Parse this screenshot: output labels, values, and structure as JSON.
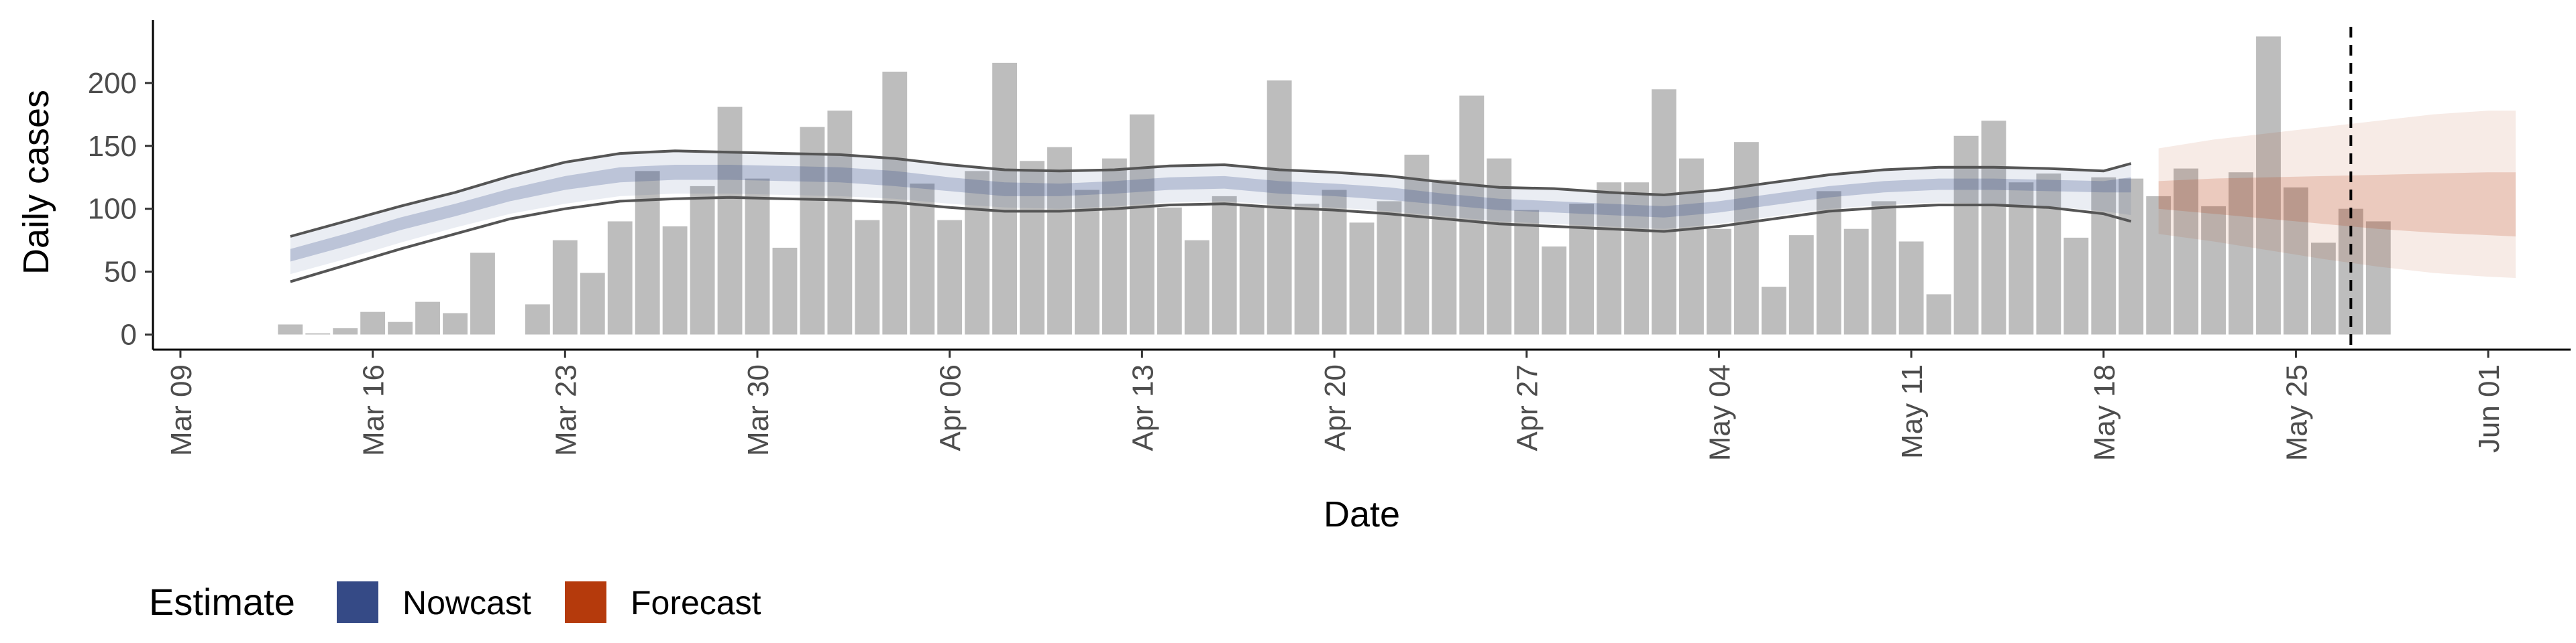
{
  "chart_data": {
    "type": "bar",
    "xlabel": "Date",
    "ylabel": "Daily cases",
    "xlim": [
      "2020-03-08",
      "2020-06-04"
    ],
    "ylim": [
      -12,
      250
    ],
    "y_ticks": [
      0,
      50,
      100,
      150,
      200
    ],
    "x_ticks": [
      {
        "date": "2020-03-09",
        "label": "Mar 09"
      },
      {
        "date": "2020-03-16",
        "label": "Mar 16"
      },
      {
        "date": "2020-03-23",
        "label": "Mar 23"
      },
      {
        "date": "2020-03-30",
        "label": "Mar 30"
      },
      {
        "date": "2020-04-06",
        "label": "Apr 06"
      },
      {
        "date": "2020-04-13",
        "label": "Apr 13"
      },
      {
        "date": "2020-04-20",
        "label": "Apr 20"
      },
      {
        "date": "2020-04-27",
        "label": "Apr 27"
      },
      {
        "date": "2020-05-04",
        "label": "May 04"
      },
      {
        "date": "2020-05-11",
        "label": "May 11"
      },
      {
        "date": "2020-05-18",
        "label": "May 18"
      },
      {
        "date": "2020-05-25",
        "label": "May 25"
      },
      {
        "date": "2020-06-01",
        "label": "Jun 01"
      }
    ],
    "grid": false,
    "legend": {
      "title": "Estimate",
      "position": "bottom-left",
      "entries": [
        {
          "label": "Nowcast",
          "color": "#354A86"
        },
        {
          "label": "Forecast",
          "color": "#B53A0C"
        }
      ]
    },
    "colors": {
      "bars": "#BDBDBD",
      "nowcast": "#354A86",
      "forecast": "#B53A0C",
      "bound_lines": "#555555",
      "vline": "#000000"
    },
    "observed_start_date": "2020-03-13",
    "observed_cases": [
      8,
      1,
      5,
      18,
      10,
      26,
      17,
      65,
      0,
      24,
      75,
      49,
      90,
      130,
      86,
      118,
      181,
      124,
      69,
      165,
      178,
      91,
      209,
      120,
      91,
      130,
      216,
      138,
      149,
      115,
      140,
      175,
      101,
      75,
      110,
      102,
      202,
      104,
      115,
      89,
      106,
      143,
      123,
      190,
      140,
      99,
      70,
      104,
      121,
      121,
      195,
      140,
      84,
      153,
      38,
      79,
      114,
      84,
      106,
      74,
      32,
      158,
      170,
      121,
      128,
      77,
      125,
      124,
      110,
      132,
      102,
      129,
      237,
      117,
      73,
      100,
      90
    ],
    "forecast_horizon_date": "2020-05-27",
    "nowcast": {
      "dates": [
        "2020-03-13",
        "2020-03-15",
        "2020-03-17",
        "2020-03-19",
        "2020-03-21",
        "2020-03-23",
        "2020-03-25",
        "2020-03-27",
        "2020-03-29",
        "2020-03-31",
        "2020-04-02",
        "2020-04-04",
        "2020-04-06",
        "2020-04-08",
        "2020-04-10",
        "2020-04-12",
        "2020-04-14",
        "2020-04-16",
        "2020-04-18",
        "2020-04-20",
        "2020-04-22",
        "2020-04-24",
        "2020-04-26",
        "2020-04-28",
        "2020-04-30",
        "2020-05-02",
        "2020-05-04",
        "2020-05-06",
        "2020-05-08",
        "2020-05-10",
        "2020-05-12",
        "2020-05-14",
        "2020-05-16",
        "2020-05-18",
        "2020-05-19"
      ],
      "upper_outer": [
        78,
        90,
        102,
        113,
        126,
        137,
        144,
        146,
        145,
        144,
        143,
        140,
        135,
        131,
        130,
        131,
        134,
        135,
        131,
        129,
        126,
        121,
        117,
        116,
        113,
        111,
        115,
        121,
        127,
        131,
        133,
        133,
        132,
        130,
        136
      ],
      "upper_inner": [
        68,
        80,
        93,
        104,
        116,
        126,
        133,
        135,
        135,
        134,
        133,
        130,
        125,
        121,
        120,
        122,
        125,
        126,
        122,
        120,
        117,
        112,
        108,
        106,
        104,
        102,
        106,
        112,
        118,
        122,
        124,
        124,
        123,
        122,
        125
      ],
      "median": [
        63,
        75,
        88,
        99,
        111,
        121,
        127,
        129,
        129,
        128,
        127,
        124,
        120,
        116,
        115,
        117,
        120,
        121,
        117,
        115,
        112,
        108,
        104,
        102,
        100,
        98,
        102,
        108,
        114,
        118,
        120,
        120,
        119,
        118,
        120
      ],
      "lower_inner": [
        58,
        70,
        83,
        94,
        106,
        115,
        121,
        123,
        123,
        122,
        121,
        118,
        114,
        110,
        110,
        112,
        115,
        116,
        112,
        110,
        107,
        103,
        99,
        97,
        95,
        93,
        97,
        103,
        109,
        113,
        115,
        115,
        114,
        113,
        113
      ],
      "lower_outer": [
        48,
        60,
        73,
        85,
        96,
        104,
        110,
        112,
        112,
        111,
        110,
        108,
        104,
        101,
        100,
        102,
        105,
        106,
        103,
        101,
        98,
        94,
        90,
        88,
        86,
        84,
        88,
        94,
        100,
        103,
        105,
        104,
        102,
        98,
        95
      ],
      "upper_line": [
        78,
        90,
        102,
        113,
        126,
        137,
        144,
        146,
        145,
        144,
        143,
        140,
        135,
        131,
        130,
        131,
        134,
        135,
        131,
        129,
        126,
        121,
        117,
        116,
        113,
        111,
        115,
        121,
        127,
        131,
        133,
        133,
        132,
        130,
        136
      ],
      "lower_line": [
        42,
        55,
        68,
        80,
        92,
        100,
        106,
        108,
        109,
        108,
        107,
        105,
        101,
        98,
        98,
        100,
        103,
        104,
        101,
        99,
        96,
        92,
        88,
        86,
        84,
        82,
        86,
        92,
        98,
        101,
        103,
        103,
        101,
        96,
        90
      ]
    },
    "forecast": {
      "dates": [
        "2020-05-20",
        "2020-05-22",
        "2020-05-24",
        "2020-05-26",
        "2020-05-28",
        "2020-05-30",
        "2020-06-01",
        "2020-06-02"
      ],
      "upper_outer": [
        148,
        155,
        160,
        165,
        170,
        175,
        178,
        178
      ],
      "upper_inner": [
        122,
        124,
        125,
        126,
        127,
        128,
        129,
        129
      ],
      "median": [
        112,
        111,
        110,
        109,
        108,
        108,
        108,
        108
      ],
      "lower_inner": [
        100,
        96,
        92,
        88,
        84,
        81,
        79,
        78
      ],
      "lower_outer": [
        80,
        74,
        67,
        60,
        54,
        49,
        46,
        45
      ]
    }
  }
}
